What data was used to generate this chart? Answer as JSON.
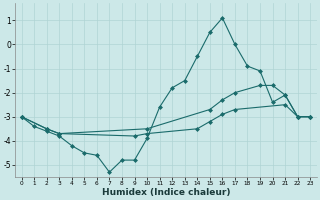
{
  "xlabel": "Humidex (Indice chaleur)",
  "xlim": [
    -0.5,
    23.5
  ],
  "ylim": [
    -5.5,
    1.7
  ],
  "yticks": [
    1,
    0,
    -1,
    -2,
    -3,
    -4,
    -5
  ],
  "xticks": [
    0,
    1,
    2,
    3,
    4,
    5,
    6,
    7,
    8,
    9,
    10,
    11,
    12,
    13,
    14,
    15,
    16,
    17,
    18,
    19,
    20,
    21,
    22,
    23
  ],
  "background_color": "#cce8e8",
  "grid_color": "#b0d4d4",
  "line_color": "#1a6b6b",
  "series": [
    {
      "x": [
        0,
        1,
        2,
        3,
        4,
        5,
        6,
        7,
        8,
        9,
        10,
        11,
        12,
        13,
        14,
        15,
        16,
        17,
        18,
        19,
        20,
        21,
        22,
        23
      ],
      "y": [
        -3,
        -3.4,
        -3.6,
        -3.8,
        -4.2,
        -4.5,
        -4.6,
        -5.3,
        -4.8,
        -4.8,
        -3.9,
        -2.6,
        -1.8,
        -1.5,
        -0.5,
        0.5,
        1.1,
        0.0,
        -0.9,
        -1.1,
        -2.4,
        -2.1,
        -3.0,
        -3.0
      ]
    },
    {
      "x": [
        0,
        2,
        3,
        10,
        15,
        16,
        17,
        19,
        20,
        21,
        22,
        23
      ],
      "y": [
        -3,
        -3.5,
        -3.7,
        -3.5,
        -2.7,
        -2.3,
        -2.0,
        -1.7,
        -1.7,
        -2.1,
        -3.0,
        -3.0
      ]
    },
    {
      "x": [
        0,
        2,
        3,
        9,
        10,
        14,
        15,
        16,
        17,
        21,
        22,
        23
      ],
      "y": [
        -3,
        -3.5,
        -3.7,
        -3.8,
        -3.7,
        -3.5,
        -3.2,
        -2.9,
        -2.7,
        -2.5,
        -3.0,
        -3.0
      ]
    }
  ],
  "marker": "D",
  "markersize": 2.0,
  "linewidth": 0.8
}
